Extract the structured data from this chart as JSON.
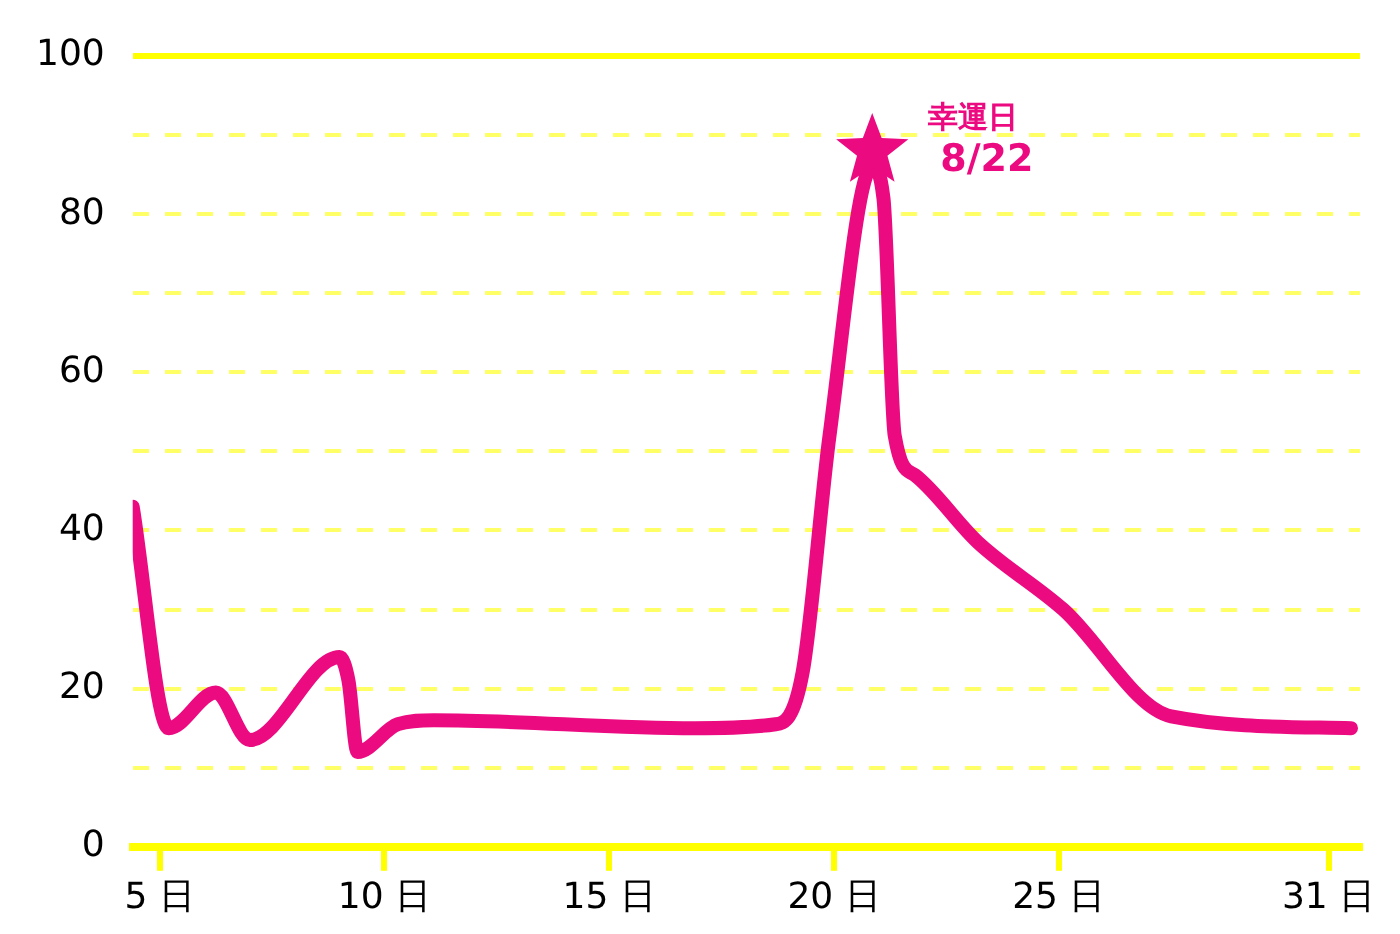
{
  "chart_data": {
    "type": "line",
    "xlim": [
      4.4,
      31.7
    ],
    "ylim": [
      0,
      100
    ],
    "xticks": [
      {
        "value": 5,
        "label": "5 日"
      },
      {
        "value": 10,
        "label": "10 日"
      },
      {
        "value": 15,
        "label": "15 日"
      },
      {
        "value": 20,
        "label": "20 日"
      },
      {
        "value": 25,
        "label": "25 日"
      },
      {
        "value": 31,
        "label": "31 日"
      }
    ],
    "yticks": [
      0,
      {
        "value": 10,
        "label": null
      },
      20,
      {
        "value": 30,
        "label": null
      },
      40,
      {
        "value": 50,
        "label": null
      },
      60,
      {
        "value": 70,
        "label": null
      },
      80,
      {
        "value": 90,
        "label": null
      },
      100
    ],
    "grid": "y",
    "legend": false,
    "series": [
      {
        "color": "#ec0a80",
        "marker": "none",
        "line_style": "solid",
        "x": [
          4.4,
          5.2,
          6.25,
          7.0,
          9.0,
          9.2,
          9.4,
          10.3,
          11.1,
          16.9,
          18.7,
          19.3,
          19.9,
          20.85,
          21.1,
          21.35,
          21.8,
          23.2,
          25.1,
          27.5,
          31.5
        ],
        "values": [
          43,
          15,
          19.5,
          13.5,
          24,
          21,
          12,
          15.5,
          16,
          15,
          15.5,
          22,
          52,
          86,
          82,
          52,
          47,
          38.5,
          30,
          16.5,
          15
        ]
      },
      {
        "type": "scatter",
        "color": "#ec0a80",
        "marker": "star",
        "x": [
          20.85
        ],
        "values": [
          88
        ]
      }
    ],
    "annotations": [
      {
        "text": "幸運日\n8/22",
        "x": 20.85,
        "y": 88
      }
    ]
  }
}
